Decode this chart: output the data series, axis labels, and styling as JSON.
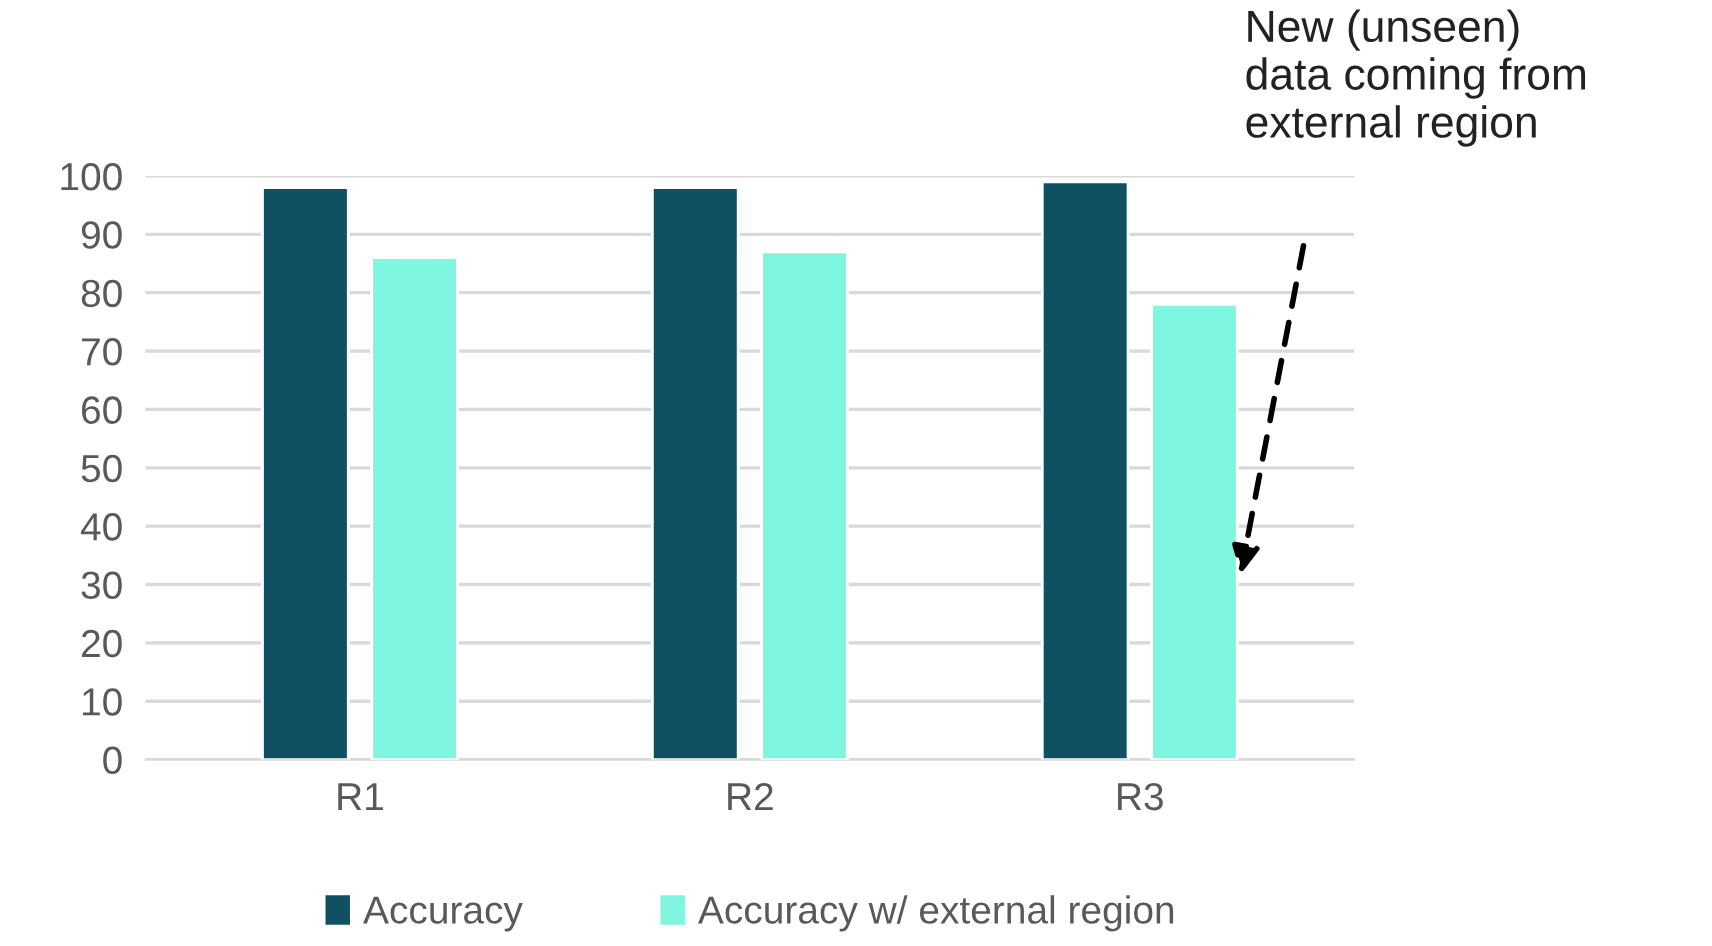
{
  "chart_data": {
    "type": "bar",
    "categories": [
      "R1",
      "R2",
      "R3"
    ],
    "series": [
      {
        "name": "Accuracy",
        "color": "#0f5163",
        "values": [
          98,
          98,
          99
        ]
      },
      {
        "name": "Accuracy w/ external region",
        "color": "#7ff7e0",
        "values": [
          86,
          87,
          78
        ]
      }
    ],
    "ylim": [
      0,
      100
    ],
    "yticks": [
      0,
      10,
      20,
      30,
      40,
      50,
      60,
      70,
      80,
      90,
      100
    ],
    "grid": "y",
    "legend": "bottom",
    "annotations": [
      "New (unseen)\ndata coming from\nexternal region"
    ]
  }
}
